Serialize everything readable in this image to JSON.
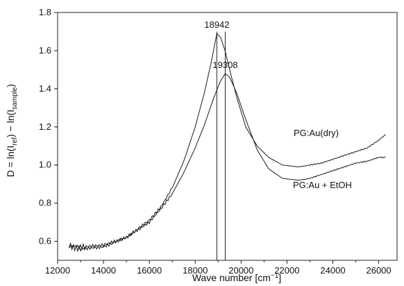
{
  "chart_data": {
    "type": "line",
    "title": "",
    "xlabel": {
      "main": "Wave number  [cm",
      "sup": "−1",
      "tail": "]"
    },
    "ylabel": {
      "p1": "D = ln(I",
      "sub1": "ref",
      "p2": ") − ln(I",
      "sub2": "sample",
      "p3": ")"
    },
    "xlim": [
      12000,
      26800
    ],
    "ylim": [
      0.5,
      1.8
    ],
    "xticks": [
      12000,
      14000,
      16000,
      18000,
      20000,
      22000,
      24000,
      26000
    ],
    "yticks": [
      0.6,
      0.8,
      1.0,
      1.2,
      1.4,
      1.6,
      1.8
    ],
    "xtick_labels": [
      "12000",
      "14000",
      "16000",
      "18000",
      "20000",
      "22000",
      "24000",
      "26000"
    ],
    "ytick_labels": [
      "0.6",
      "0.8",
      "1.0",
      "1.2",
      "1.4",
      "1.6",
      "1.8"
    ],
    "grid": false,
    "legend": "none",
    "series": [
      {
        "name": "PG:Au(dry)",
        "x": [
          12500,
          13000,
          14000,
          15000,
          16000,
          16500,
          17000,
          17500,
          18000,
          18400,
          18700,
          18942,
          19100,
          19300,
          19500,
          19800,
          20200,
          20700,
          21200,
          21800,
          22500,
          23000,
          23500,
          24000,
          24500,
          25000,
          25500,
          26000,
          26300
        ],
        "y": [
          0.58,
          0.57,
          0.58,
          0.62,
          0.71,
          0.78,
          0.88,
          1.02,
          1.2,
          1.38,
          1.54,
          1.69,
          1.67,
          1.6,
          1.5,
          1.36,
          1.2,
          1.1,
          1.04,
          1.0,
          0.99,
          1.0,
          1.01,
          1.03,
          1.05,
          1.07,
          1.09,
          1.13,
          1.16
        ]
      },
      {
        "name": "PG:Au + EtOH",
        "x": [
          12500,
          13000,
          14000,
          15000,
          16000,
          16500,
          17000,
          17500,
          18000,
          18400,
          18800,
          19100,
          19308,
          19500,
          19800,
          20200,
          20700,
          21200,
          21800,
          22500,
          23000,
          23500,
          24000,
          24500,
          25000,
          25500,
          26000,
          26300
        ],
        "y": [
          0.57,
          0.56,
          0.57,
          0.62,
          0.7,
          0.77,
          0.85,
          0.96,
          1.09,
          1.21,
          1.35,
          1.44,
          1.48,
          1.46,
          1.38,
          1.24,
          1.08,
          0.98,
          0.93,
          0.92,
          0.93,
          0.95,
          0.97,
          0.99,
          1.01,
          1.02,
          1.04,
          1.04
        ]
      }
    ],
    "vertical_markers": [
      18942,
      19308
    ],
    "peak_labels": [
      {
        "text": "18942",
        "x": 18942,
        "y": 1.69
      },
      {
        "text": "19308",
        "x": 19308,
        "y": 1.48
      }
    ]
  }
}
